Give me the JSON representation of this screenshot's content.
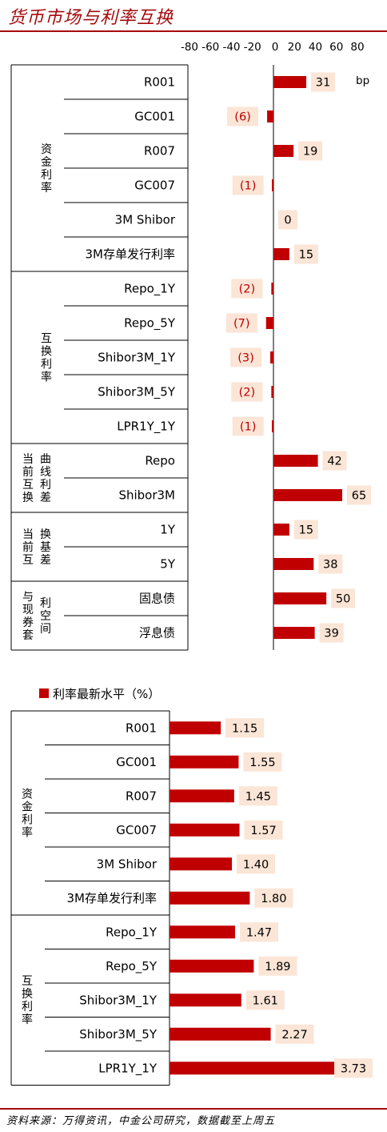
{
  "header": {
    "title": "货币市场与利率互换"
  },
  "footer": {
    "source": "资料来源：万得资讯，中金公司研究，数据截至上周五"
  },
  "colors": {
    "bar": "#c00000",
    "label_bg": "#fbe5d6",
    "negative_text": "#c00000",
    "accent": "#a50a0a"
  },
  "chart_data": [
    {
      "type": "bar",
      "orientation": "horizontal",
      "unit": "bp",
      "xlim": [
        -80,
        80
      ],
      "xticks": [
        "-80",
        "-60",
        "-40",
        "-20",
        "0",
        "20",
        "40",
        "60",
        "80"
      ],
      "groups": [
        {
          "name": "资金利率",
          "start": 0,
          "end": 5
        },
        {
          "name": "互换利率",
          "start": 6,
          "end": 10
        },
        {
          "name": "当前互换曲线利差",
          "start": 11,
          "end": 12
        },
        {
          "name": "当前互换基差",
          "start": 13,
          "end": 14
        },
        {
          "name": "与现券套利空间",
          "start": 15,
          "end": 16
        }
      ],
      "categories": [
        "R001",
        "GC001",
        "R007",
        "GC007",
        "3M Shibor",
        "3M存单发行利率",
        "Repo_1Y",
        "Repo_5Y",
        "Shibor3M_1Y",
        "Shibor3M_5Y",
        "LPR1Y_1Y",
        "Repo",
        "Shibor3M",
        "1Y",
        "5Y",
        "固息债",
        "浮息债"
      ],
      "values": [
        31,
        -6,
        19,
        -1,
        0,
        15,
        -2,
        -7,
        -3,
        -2,
        -1,
        42,
        65,
        15,
        38,
        50,
        39
      ],
      "labels": [
        "31",
        "(6)",
        "19",
        "(1)",
        "0",
        "15",
        "(2)",
        "(7)",
        "(3)",
        "(2)",
        "(1)",
        "42",
        "65",
        "15",
        "38",
        "50",
        "39"
      ]
    },
    {
      "type": "bar",
      "orientation": "horizontal",
      "title": "利率最新水平（%）",
      "xlim": [
        0,
        4
      ],
      "groups": [
        {
          "name": "资金利率",
          "start": 0,
          "end": 5
        },
        {
          "name": "互换利率",
          "start": 6,
          "end": 10
        }
      ],
      "categories": [
        "R001",
        "GC001",
        "R007",
        "GC007",
        "3M Shibor",
        "3M存单发行利率",
        "Repo_1Y",
        "Repo_5Y",
        "Shibor3M_1Y",
        "Shibor3M_5Y",
        "LPR1Y_1Y"
      ],
      "values": [
        1.15,
        1.55,
        1.45,
        1.57,
        1.4,
        1.8,
        1.47,
        1.89,
        1.61,
        2.27,
        3.73
      ],
      "labels": [
        "1.15",
        "1.55",
        "1.45",
        "1.57",
        "1.40",
        "1.80",
        "1.47",
        "1.89",
        "1.61",
        "2.27",
        "3.73"
      ]
    }
  ]
}
